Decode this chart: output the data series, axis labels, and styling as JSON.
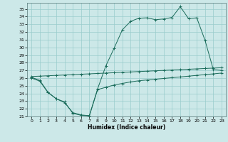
{
  "xlabel": "Humidex (Indice chaleur)",
  "background_color": "#cce8e8",
  "grid_color": "#99cccc",
  "line_color": "#1a6b5a",
  "xlim": [
    -0.5,
    23.5
  ],
  "ylim": [
    21,
    35.8
  ],
  "xticks": [
    0,
    1,
    2,
    3,
    4,
    5,
    6,
    7,
    8,
    9,
    10,
    11,
    12,
    13,
    14,
    15,
    16,
    17,
    18,
    19,
    20,
    21,
    22,
    23
  ],
  "yticks": [
    21,
    22,
    23,
    24,
    25,
    26,
    27,
    28,
    29,
    30,
    31,
    32,
    33,
    34,
    35
  ],
  "upper_x": [
    0,
    1,
    2,
    3,
    4,
    5,
    6,
    7,
    8,
    9,
    10,
    11,
    12,
    13,
    14,
    15,
    16,
    17,
    18,
    19,
    20,
    21,
    22,
    23
  ],
  "upper_y": [
    26.2,
    26.25,
    26.3,
    26.35,
    26.4,
    26.45,
    26.5,
    26.55,
    26.6,
    26.65,
    26.7,
    26.75,
    26.8,
    26.85,
    26.9,
    26.95,
    27.0,
    27.05,
    27.1,
    27.15,
    27.2,
    27.25,
    27.3,
    27.35
  ],
  "lower_x": [
    0,
    1,
    2,
    3,
    4,
    5,
    6,
    7,
    8,
    9,
    10,
    11,
    12,
    13,
    14,
    15,
    16,
    17,
    18,
    19,
    20,
    21,
    22,
    23
  ],
  "lower_y": [
    26.0,
    25.6,
    24.1,
    23.3,
    22.8,
    21.5,
    21.2,
    21.1,
    24.5,
    24.8,
    25.1,
    25.3,
    25.5,
    25.65,
    25.75,
    25.85,
    25.95,
    26.05,
    26.15,
    26.25,
    26.35,
    26.45,
    26.55,
    26.65
  ],
  "mid_x": [
    0,
    1,
    2,
    3,
    4,
    5,
    6,
    7,
    8,
    9,
    10,
    11,
    12,
    13,
    14,
    15,
    16,
    17,
    18,
    19,
    20,
    21,
    22,
    23
  ],
  "mid_y": [
    26.1,
    25.7,
    24.15,
    23.3,
    22.9,
    21.4,
    21.15,
    21.1,
    24.6,
    27.6,
    29.9,
    32.3,
    33.4,
    33.8,
    33.85,
    33.6,
    33.7,
    33.9,
    35.3,
    33.75,
    33.85,
    30.9,
    27.1,
    27.0
  ]
}
